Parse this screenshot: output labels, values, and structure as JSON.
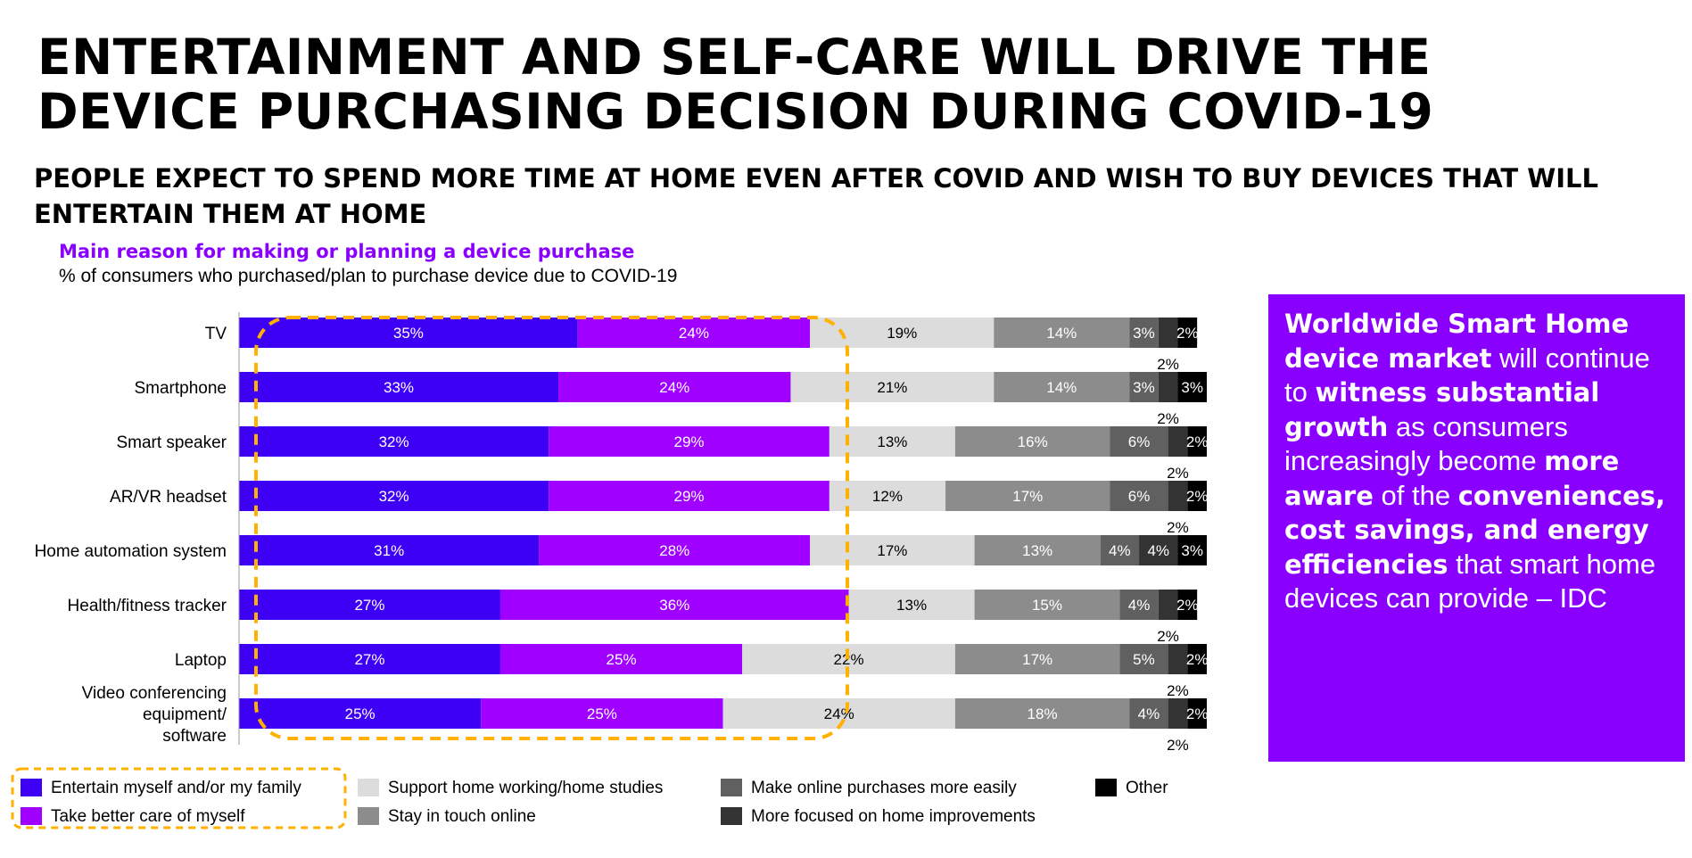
{
  "title": "ENTERTAINMENT AND SELF-CARE WILL DRIVE THE DEVICE PURCHASING DECISION DURING COVID-19",
  "subtitle": "PEOPLE EXPECT TO SPEND MORE TIME AT HOME EVEN AFTER COVID AND WISH TO BUY DEVICES THAT WILL ENTERTAIN THEM AT HOME",
  "chart_heading": "Main reason for making or planning a device purchase",
  "chart_subheading": "% of consumers who purchased/plan to purchase device due to COVID-19",
  "callout": [
    {
      "text": "Worldwide Smart Home device market",
      "bold": true
    },
    {
      "text": " will continue to ",
      "bold": false
    },
    {
      "text": "witness substantial growth",
      "bold": true
    },
    {
      "text": " as consumers increasingly become ",
      "bold": false
    },
    {
      "text": "more aware",
      "bold": true
    },
    {
      "text": " of the ",
      "bold": false
    },
    {
      "text": "conveniences, cost savings, and energy efficiencies",
      "bold": true
    },
    {
      "text": " that smart home devices can provide – IDC",
      "bold": false
    }
  ],
  "colors": {
    "accent_purple": "#8a00ff",
    "highlight_box": "#ffb000"
  },
  "chart_data": {
    "type": "bar",
    "orientation": "horizontal",
    "stacked": true,
    "normalized": true,
    "unit": "%",
    "categories": [
      [
        "TV"
      ],
      [
        "Smartphone"
      ],
      [
        "Smart speaker"
      ],
      [
        "AR/VR headset"
      ],
      [
        "Home automation system"
      ],
      [
        "Health/fitness tracker"
      ],
      [
        "Laptop"
      ],
      [
        "Video conferencing",
        "equipment/",
        "software"
      ]
    ],
    "series": [
      {
        "name": "Entertain myself and/or my family",
        "color": "#3d00f5",
        "label_color": "#ffffff",
        "values": [
          35,
          33,
          32,
          32,
          31,
          27,
          27,
          25
        ]
      },
      {
        "name": "Take better care of myself",
        "color": "#a000ff",
        "label_color": "#ffffff",
        "values": [
          24,
          24,
          29,
          29,
          28,
          36,
          25,
          25
        ]
      },
      {
        "name": "Support home working/home studies",
        "color": "#dcdcdc",
        "label_color": "#000000",
        "values": [
          19,
          21,
          13,
          12,
          17,
          13,
          22,
          24
        ]
      },
      {
        "name": "Stay in touch online",
        "color": "#8c8c8c",
        "label_color": "#ffffff",
        "values": [
          14,
          14,
          16,
          17,
          13,
          15,
          17,
          18
        ]
      },
      {
        "name": "Make online purchases more easily",
        "color": "#606060",
        "label_color": "#ffffff",
        "values": [
          3,
          3,
          6,
          6,
          4,
          4,
          5,
          4
        ]
      },
      {
        "name": "More focused on home improvements",
        "color": "#333333",
        "label_color": "#ffffff",
        "values": [
          2,
          2,
          2,
          2,
          4,
          2,
          2,
          2
        ]
      },
      {
        "name": "Other",
        "color": "#000000",
        "label_color": "#ffffff",
        "values": [
          2,
          3,
          2,
          2,
          3,
          2,
          2,
          2
        ]
      }
    ],
    "legend": {
      "placement": "bottom",
      "columns": [
        [
          "Entertain myself and/or my family",
          "Take better care of myself"
        ],
        [
          "Support home working/home studies",
          "Stay in touch online"
        ],
        [
          "Make online purchases more easily",
          "More focused on home improvements"
        ],
        [
          "Other"
        ]
      ],
      "highlighted": [
        "Entertain myself and/or my family",
        "Take better care of myself"
      ]
    },
    "highlight": "dashed box around the first two series"
  }
}
